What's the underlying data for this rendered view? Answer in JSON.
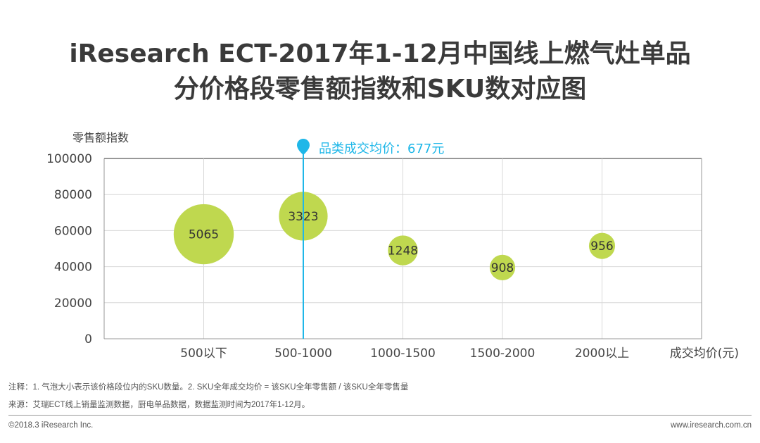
{
  "title_line1": "iResearch ECT-2017年1-12月中国线上燃气灶单品",
  "title_line2": "分价格段零售额指数和SKU数对应图",
  "chart_data": {
    "type": "bubble",
    "categories": [
      "500以下",
      "500-1000",
      "1000-1500",
      "1500-2000",
      "2000以上"
    ],
    "values": [
      58000,
      68000,
      49000,
      39500,
      51500
    ],
    "bubble_sizes": [
      5065,
      3323,
      1248,
      908,
      956
    ],
    "ylabel": "零售额指数",
    "xlabel": "成交均价(元)",
    "ylim": [
      0,
      100000
    ],
    "yticks": [
      0,
      20000,
      40000,
      60000,
      80000,
      100000
    ],
    "grid": true,
    "bubble_color": "#bfd84f",
    "reference_line": {
      "label": "品类成交均价：677元",
      "category": "500-1000",
      "color": "#1fb7e8"
    }
  },
  "notes": {
    "note": "注释：1. 气泡大小表示该价格段位内的SKU数量。2. SKU全年成交均价 = 该SKU全年零售额 / 该SKU全年零售量",
    "source": "来源：艾瑞ECT线上销量监测数据，厨电单品数据，数据监测时间为2017年1-12月。"
  },
  "footer": {
    "copyright": "©2018.3 iResearch Inc.",
    "website": "www.iresearch.com.cn"
  }
}
